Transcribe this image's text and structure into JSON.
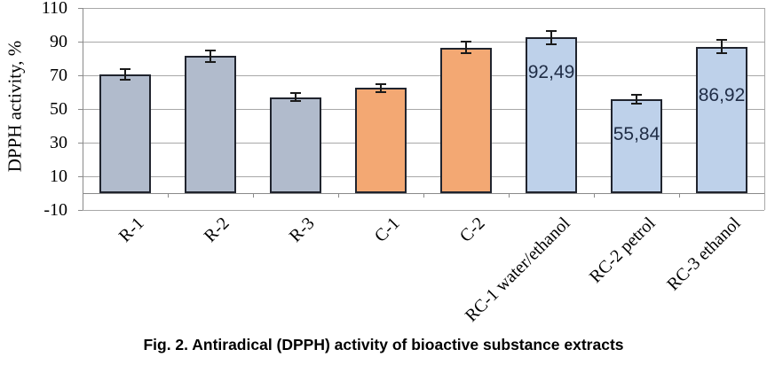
{
  "figure": {
    "caption": "Fig. 2. Antiradical (DPPH) activity of bioactive substance extracts"
  },
  "chart_data": {
    "type": "bar",
    "title": "",
    "xlabel": "",
    "ylabel": "DPPH activity, %",
    "ylim": [
      -10,
      110
    ],
    "ytick_interval": 20,
    "yticks": [
      110,
      90,
      70,
      50,
      30,
      10,
      -10
    ],
    "grid": true,
    "legend": "none",
    "categories": [
      "R-1",
      "R-2",
      "R-3",
      "C-1",
      "C-2",
      "RC-1 water/ethanol",
      "RC-2 petrol",
      "RC-3 ethanol"
    ],
    "values": [
      70.5,
      81.5,
      57,
      62.5,
      86.5,
      92.49,
      55.84,
      86.92
    ],
    "error_bars": [
      3.5,
      4,
      3,
      3,
      4,
      4.5,
      3,
      4.5
    ],
    "data_labels": [
      "",
      "",
      "",
      "",
      "",
      "92,49",
      "55,84",
      "86,92"
    ],
    "bar_colors": [
      "#b1bbcc",
      "#b1bbcc",
      "#b1bbcc",
      "#f3a873",
      "#f3a873",
      "#bed1ea",
      "#bed1ea",
      "#bed1ea"
    ],
    "colors": {
      "bar_gray_blue": "#b1bbcc",
      "bar_orange": "#f3a873",
      "bar_light_blue": "#bed1ea",
      "bar_border": "#20242e",
      "gridline": "#a8a8a8",
      "axis": "#8a8a8a",
      "error_bar": "#1a1a1a",
      "data_label_text": "#1f2c45"
    }
  }
}
